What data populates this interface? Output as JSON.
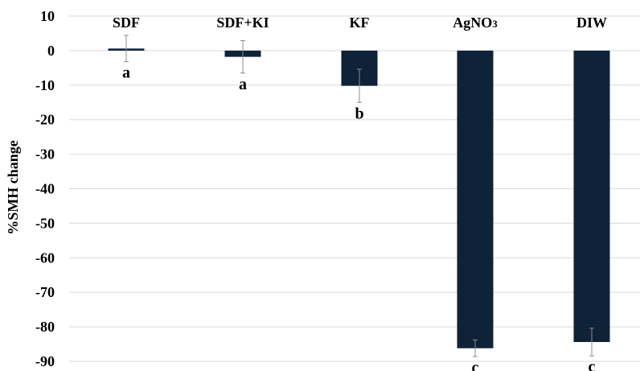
{
  "chart_data": {
    "type": "bar",
    "title": "",
    "xlabel": "",
    "ylabel": "%SMH change",
    "ylim": [
      -90,
      10
    ],
    "yticks": [
      10,
      0,
      -10,
      -20,
      -30,
      -40,
      -50,
      -60,
      -70,
      -80,
      -90
    ],
    "grid": true,
    "bar_color": "#0e2238",
    "error_color": "#8c8c8c",
    "categories": [
      {
        "text": "SDF",
        "sub": ""
      },
      {
        "text": "SDF+KI",
        "sub": ""
      },
      {
        "text": "KF",
        "sub": ""
      },
      {
        "text": "AgNO",
        "sub": "3"
      },
      {
        "text": "DIW",
        "sub": ""
      }
    ],
    "values": [
      0.6,
      -1.8,
      -10.2,
      -86.2,
      -84.4
    ],
    "errors": [
      3.8,
      4.7,
      4.8,
      2.4,
      4.0
    ],
    "significance": [
      "a",
      "a",
      "b",
      "c",
      "c"
    ]
  }
}
